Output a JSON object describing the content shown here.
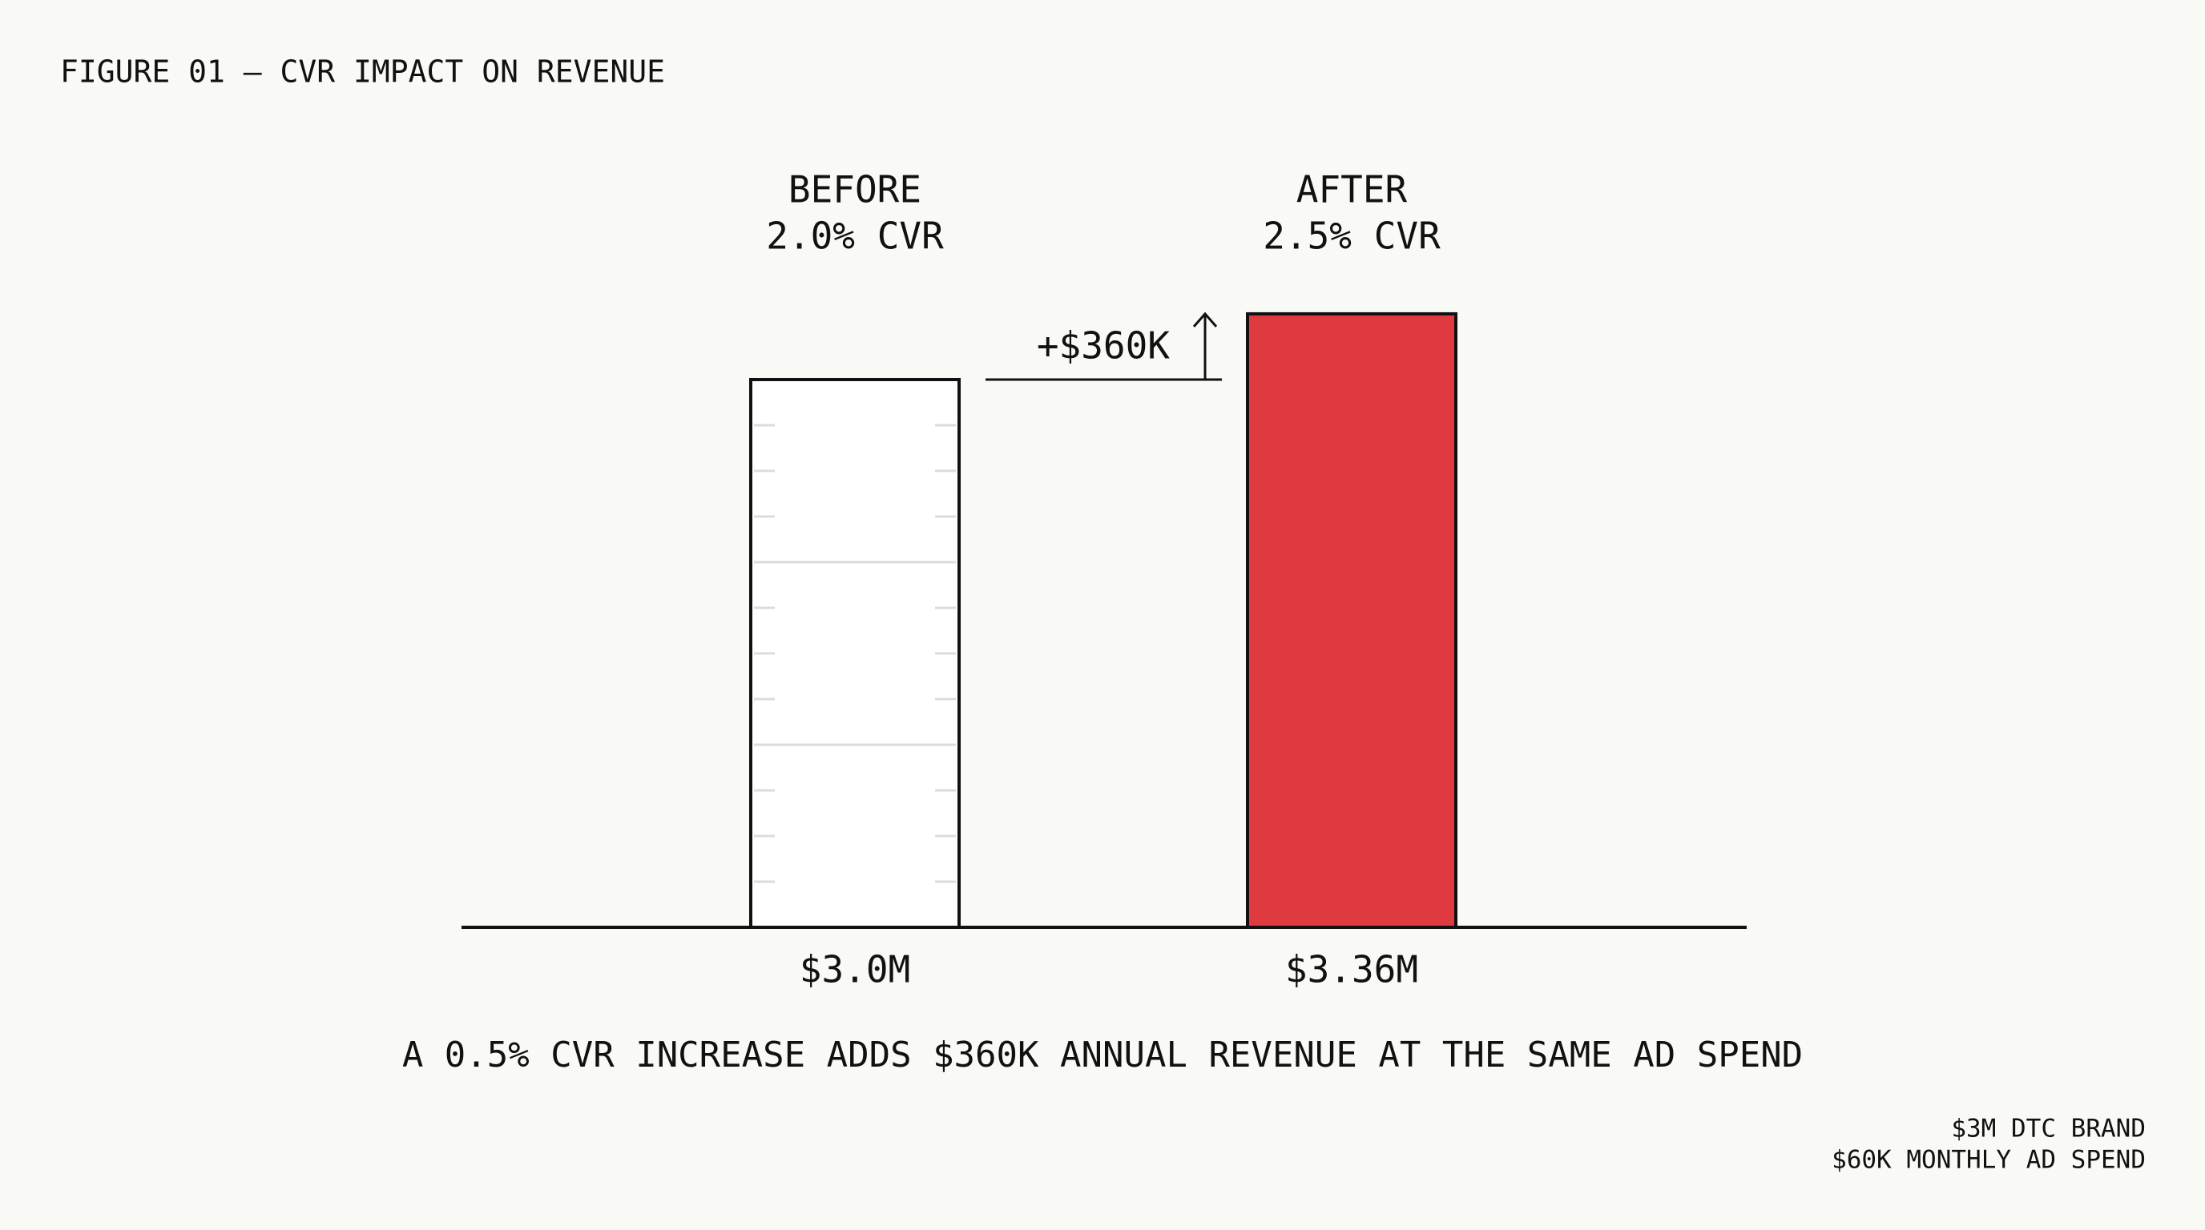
{
  "chart_data": {
    "type": "bar",
    "title": "FIGURE 01 — CVR IMPACT ON REVENUE",
    "categories": [
      "BEFORE",
      "AFTER"
    ],
    "category_sublabels": [
      "2.0% CVR",
      "2.5% CVR"
    ],
    "values": [
      3.0,
      3.36
    ],
    "value_labels": [
      "$3.0M",
      "$3.36M"
    ],
    "colors": [
      "#ffffff",
      "#e03a41"
    ],
    "annotation": "+$360K",
    "caption": "A 0.5% CVR INCREASE ADDS $360K ANNUAL REVENUE AT THE SAME AD SPEND",
    "footnote": [
      "$3M DTC BRAND",
      "$60K MONTHLY AD SPEND"
    ]
  }
}
